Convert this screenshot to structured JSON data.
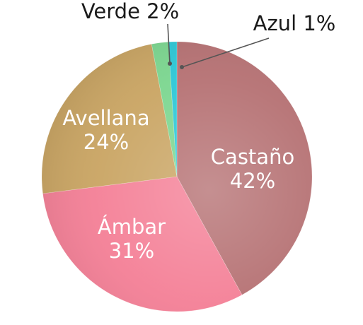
{
  "chart_data": {
    "type": "pie",
    "title": "",
    "slices": [
      {
        "label": "Castaño",
        "value": 42,
        "value_label": "42%",
        "color": "#b57072",
        "label_position": "inside"
      },
      {
        "label": "Ámbar",
        "value": 31,
        "value_label": "31%",
        "color": "#f47f96",
        "label_position": "inside"
      },
      {
        "label": "Avellana",
        "value": 24,
        "value_label": "24%",
        "color": "#c9a462",
        "label_position": "inside"
      },
      {
        "label": "Verde",
        "value": 2,
        "value_label": "2%",
        "color": "#7bd68f",
        "label_position": "outside"
      },
      {
        "label": "Azul",
        "value": 1,
        "value_label": "1%",
        "color": "#2bc7d6",
        "label_position": "outside"
      }
    ],
    "legend": "none",
    "start": "top",
    "direction": "clockwise"
  }
}
